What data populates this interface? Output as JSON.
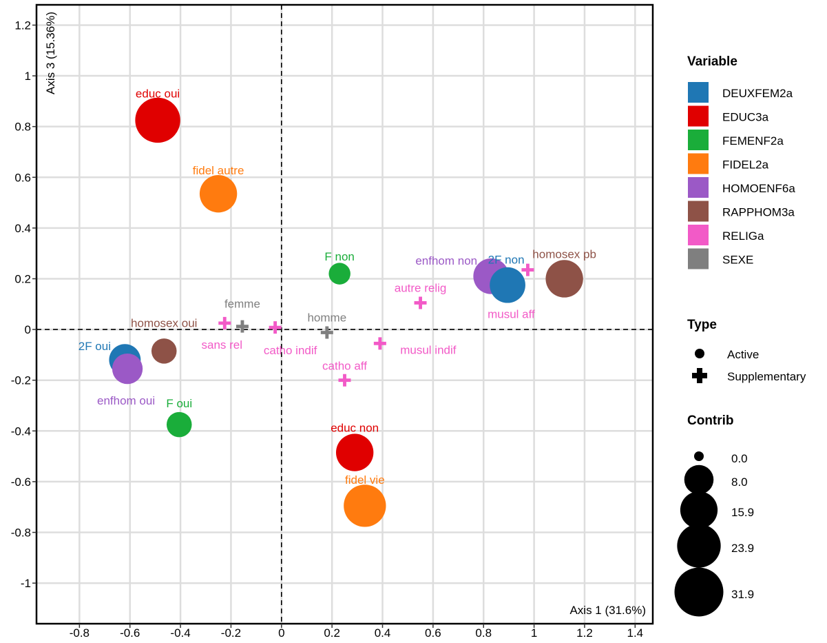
{
  "chart_data": {
    "type": "scatter",
    "xlabel": "Axis 1 (31.6%)",
    "ylabel": "Axis 3 (15.36%)",
    "xlim": [
      -0.97,
      1.47
    ],
    "ylim": [
      -1.16,
      1.28
    ],
    "xticks": [
      -0.8,
      -0.6,
      -0.4,
      -0.2,
      0,
      0.2,
      0.4,
      0.6,
      0.8,
      1,
      1.2,
      1.4
    ],
    "xtick_labels": [
      "-0.8",
      "-0.6",
      "-0.4",
      "-0.2",
      "0",
      "0.2",
      "0.4",
      "0.6",
      "0.8",
      "1",
      "1.2",
      "1.4"
    ],
    "yticks": [
      1.2,
      1,
      0.8,
      0.6,
      0.4,
      0.2,
      0,
      -0.2,
      -0.4,
      -0.6,
      -0.8,
      -1
    ],
    "ytick_labels": [
      "1.2",
      "1",
      "0.8",
      "0.6",
      "0.4",
      "0.2",
      "0",
      "-0.2",
      "-0.4",
      "-0.6",
      "-0.8",
      "-1"
    ],
    "grid": true,
    "reference_lines": {
      "x": 0,
      "y": 0,
      "style": "dashed"
    },
    "variables": [
      {
        "name": "DEUXFEM2a",
        "color": "#1f77b4"
      },
      {
        "name": "EDUC3a",
        "color": "#e00000"
      },
      {
        "name": "FEMENF2a",
        "color": "#1aad3a"
      },
      {
        "name": "FIDEL2a",
        "color": "#ff7b0f"
      },
      {
        "name": "HOMOENF6a",
        "color": "#9b59c6"
      },
      {
        "name": "RAPPHOM3a",
        "color": "#8e5247"
      },
      {
        "name": "RELIGa",
        "color": "#f25ac7"
      },
      {
        "name": "SEXE",
        "color": "#7f7f7f"
      }
    ],
    "points": [
      {
        "label": "educ oui",
        "variable": "EDUC3a",
        "type": "Active",
        "x": -0.49,
        "y": 0.825,
        "contrib": 26,
        "label_dx": 0,
        "label_dy": -39
      },
      {
        "label": "fidel autre",
        "variable": "FIDEL2a",
        "type": "Active",
        "x": -0.25,
        "y": 0.535,
        "contrib": 16,
        "label_dx": 0,
        "label_dy": -34
      },
      {
        "label": "F non",
        "variable": "FEMENF2a",
        "type": "Active",
        "x": 0.23,
        "y": 0.22,
        "contrib": 3,
        "label_dx": 0,
        "label_dy": -25
      },
      {
        "label": "enfhom non",
        "variable": "HOMOENF6a",
        "type": "Active",
        "x": 0.83,
        "y": 0.21,
        "contrib": 14,
        "label_dx": -65,
        "label_dy": -23
      },
      {
        "label": "2F non",
        "variable": "DEUXFEM2a",
        "type": "Active",
        "x": 0.895,
        "y": 0.175,
        "contrib": 14,
        "label_dx": -2,
        "label_dy": -37
      },
      {
        "label": "homosex pb",
        "variable": "RAPPHOM3a",
        "type": "Active",
        "x": 1.12,
        "y": 0.2,
        "contrib": 16,
        "label_dx": 0,
        "label_dy": -36
      },
      {
        "label": "homosex oui",
        "variable": "RAPPHOM3a",
        "type": "Active",
        "x": -0.465,
        "y": -0.085,
        "contrib": 5,
        "label_dx": 0,
        "label_dy": -41
      },
      {
        "label": "2F oui",
        "variable": "DEUXFEM2a",
        "type": "Active",
        "x": -0.62,
        "y": -0.12,
        "contrib": 10,
        "label_dx": -44,
        "label_dy": -20
      },
      {
        "label": "enfhom oui",
        "variable": "HOMOENF6a",
        "type": "Active",
        "x": -0.61,
        "y": -0.155,
        "contrib": 9,
        "label_dx": -2,
        "label_dy": 46
      },
      {
        "label": "F oui",
        "variable": "FEMENF2a",
        "type": "Active",
        "x": -0.405,
        "y": -0.375,
        "contrib": 5,
        "label_dx": 0,
        "label_dy": -31
      },
      {
        "label": "educ non",
        "variable": "EDUC3a",
        "type": "Active",
        "x": 0.29,
        "y": -0.485,
        "contrib": 16,
        "label_dx": 0,
        "label_dy": -36
      },
      {
        "label": "fidel vie",
        "variable": "FIDEL2a",
        "type": "Active",
        "x": 0.33,
        "y": -0.695,
        "contrib": 22,
        "label_dx": 0,
        "label_dy": -38
      },
      {
        "label": "femme",
        "variable": "SEXE",
        "type": "Supplementary",
        "x": -0.155,
        "y": 0.012,
        "label_dx": 0,
        "label_dy": -33
      },
      {
        "label": "homme",
        "variable": "SEXE",
        "type": "Supplementary",
        "x": 0.18,
        "y": -0.012,
        "label_dx": 0,
        "label_dy": -22
      },
      {
        "label": "sans rel",
        "variable": "RELIGa",
        "type": "Supplementary",
        "x": -0.225,
        "y": 0.025,
        "label_dx": -4,
        "label_dy": 31
      },
      {
        "label": "catho indif",
        "variable": "RELIGa",
        "type": "Supplementary",
        "x": -0.025,
        "y": 0.008,
        "label_dx": 22,
        "label_dy": 33
      },
      {
        "label": "autre relig",
        "variable": "RELIGa",
        "type": "Supplementary",
        "x": 0.55,
        "y": 0.105,
        "label_dx": 0,
        "label_dy": -22
      },
      {
        "label": "musul aff",
        "variable": "RELIGa",
        "type": "Supplementary",
        "x": 0.975,
        "y": 0.235,
        "label_dx": -24,
        "label_dy": 64
      },
      {
        "label": "musul indif",
        "variable": "RELIGa",
        "type": "Supplementary",
        "x": 0.39,
        "y": -0.055,
        "label_dx": 70,
        "label_dy": 9
      },
      {
        "label": "catho aff",
        "variable": "RELIGa",
        "type": "Supplementary",
        "x": 0.25,
        "y": -0.2,
        "label_dx": 0,
        "label_dy": -21
      }
    ],
    "legend": {
      "placement": "right",
      "variable_title": "Variable",
      "type_title": "Type",
      "type_entries": [
        "Active",
        "Supplementary"
      ],
      "contrib_title": "Contrib",
      "contrib_entries": [
        {
          "label": "0.0",
          "value": 0
        },
        {
          "label": "8.0",
          "value": 8
        },
        {
          "label": "15.9",
          "value": 15.9
        },
        {
          "label": "23.9",
          "value": 23.9
        },
        {
          "label": "31.9",
          "value": 31.9
        }
      ]
    }
  }
}
